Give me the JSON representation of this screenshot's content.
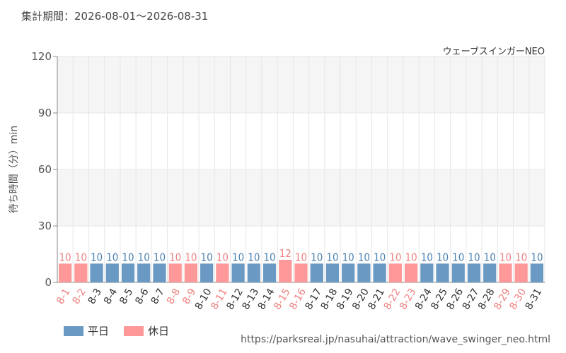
{
  "header": {
    "period": "集計期間：2026-08-01～2026-08-31",
    "attraction": "ウェーブスインガーNEO"
  },
  "footer": {
    "url": "https://parksreal.jp/nasuhai/attraction/wave_swinger_neo.html"
  },
  "colors": {
    "weekday": "#6a9ac4",
    "holiday": "#ff9999",
    "weekday_text": "#4a80b0",
    "holiday_text": "#f08080",
    "plot_band": "#f5f5f5",
    "grid": "#e6e6e6",
    "axis": "#888888"
  },
  "legend": {
    "weekday": "平日",
    "holiday": "休日"
  },
  "chart_data": {
    "type": "bar",
    "title": "",
    "xlabel": "",
    "ylabel": "待ち時間（分）min",
    "ylim": [
      0,
      120
    ],
    "yticks": [
      0,
      30,
      60,
      90,
      120
    ],
    "grid": true,
    "legend_position": "bottom-left",
    "categories": [
      "8-1",
      "8-2",
      "8-3",
      "8-4",
      "8-5",
      "8-6",
      "8-7",
      "8-8",
      "8-9",
      "8-10",
      "8-11",
      "8-12",
      "8-13",
      "8-14",
      "8-15",
      "8-16",
      "8-17",
      "8-18",
      "8-19",
      "8-20",
      "8-21",
      "8-22",
      "8-23",
      "8-24",
      "8-25",
      "8-26",
      "8-27",
      "8-28",
      "8-29",
      "8-30",
      "8-31"
    ],
    "values": [
      10,
      10,
      10,
      10,
      10,
      10,
      10,
      10,
      10,
      10,
      10,
      10,
      10,
      10,
      12,
      10,
      10,
      10,
      10,
      10,
      10,
      10,
      10,
      10,
      10,
      10,
      10,
      10,
      10,
      10,
      10
    ],
    "day_type": [
      "holiday",
      "holiday",
      "weekday",
      "weekday",
      "weekday",
      "weekday",
      "weekday",
      "holiday",
      "holiday",
      "weekday",
      "holiday",
      "weekday",
      "weekday",
      "weekday",
      "holiday",
      "holiday",
      "weekday",
      "weekday",
      "weekday",
      "weekday",
      "weekday",
      "holiday",
      "holiday",
      "weekday",
      "weekday",
      "weekday",
      "weekday",
      "weekday",
      "holiday",
      "holiday",
      "weekday"
    ]
  }
}
